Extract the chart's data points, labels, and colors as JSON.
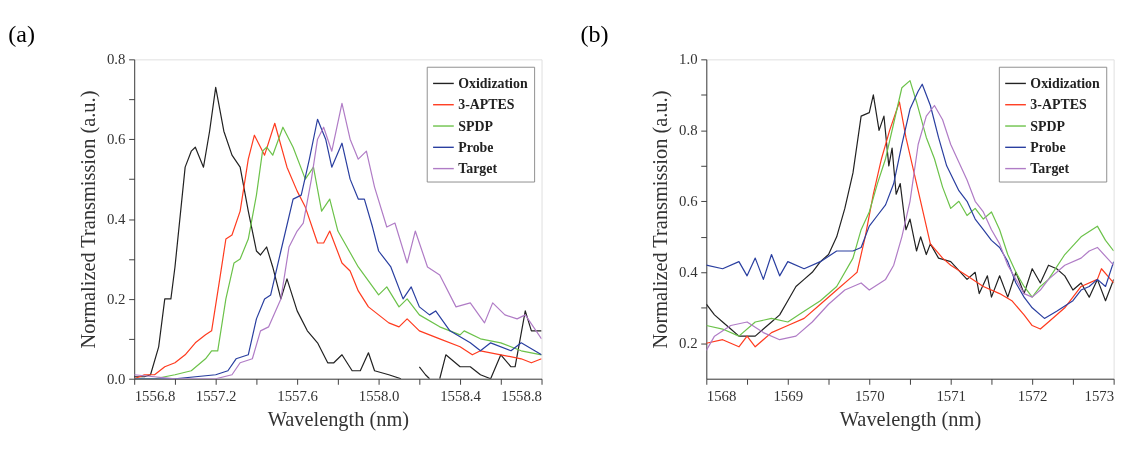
{
  "chart_data": [
    {
      "type": "line",
      "title": "(a)",
      "xlabel": "Wavelength (nm)",
      "ylabel": "Normalized Transmission (a.u.)",
      "xlim": [
        1556.8,
        1558.8
      ],
      "ylim": [
        0,
        0.8
      ],
      "xticks": [
        1556.8,
        {
          "value": 1557.0,
          "label": null
        },
        1557.2,
        {
          "value": 1557.4,
          "label": null
        },
        1557.6,
        {
          "value": 1557.8,
          "label": null
        },
        {
          "value": 1558.0,
          "label": "1558.0"
        },
        {
          "value": 1558.2,
          "label": null
        },
        1558.4,
        {
          "value": 1558.6,
          "label": null
        },
        1558.8
      ],
      "yticks": [
        {
          "value": 0,
          "label": "0.0"
        },
        {
          "value": 0.1,
          "label": null
        },
        0.2,
        {
          "value": 0.3,
          "label": null
        },
        0.4,
        {
          "value": 0.5,
          "label": null
        },
        0.6,
        {
          "value": 0.7,
          "label": null
        },
        0.8
      ],
      "grid": false,
      "legend": "top right",
      "series": [
        {
          "name": "Oxidization",
          "color": "#222222",
          "x": [
            1556.8,
            1556.85,
            1556.88,
            1556.92,
            1556.95,
            1556.98,
            1557.0,
            1557.05,
            1557.08,
            1557.1,
            1557.14,
            1557.17,
            1557.2,
            1557.24,
            1557.28,
            1557.32,
            1557.36,
            1557.4,
            1557.42,
            1557.45,
            1557.48,
            1557.52,
            1557.55,
            1557.6,
            1557.65,
            1557.7,
            1557.75,
            1557.78,
            1557.82,
            1557.87,
            1557.91,
            1557.95,
            1557.98,
            1558.05,
            1558.11,
            1558.12,
            1558.15,
            1558.2,
            1558.23,
            1558.25,
            1558.28,
            1558.3,
            1558.33,
            1558.4,
            1558.45,
            1558.5,
            1558.55,
            1558.6,
            1558.65,
            1558.67,
            1558.72,
            1558.75,
            1558.8
          ],
          "values": [
            0.005,
            0.005,
            0.01,
            0.08,
            0.2,
            0.2,
            0.28,
            0.53,
            0.57,
            0.58,
            0.53,
            0.62,
            0.73,
            0.62,
            0.56,
            0.53,
            0.42,
            0.32,
            0.31,
            0.33,
            0.28,
            0.2,
            0.25,
            0.17,
            0.12,
            0.09,
            0.04,
            0.04,
            0.06,
            0.02,
            0.02,
            0.065,
            0.02,
            0.01,
            0.0,
            null,
            null,
            0.03,
            0.01,
            0.0,
            null,
            0.0,
            0.06,
            0.03,
            0.03,
            0.01,
            0.0,
            0.06,
            0.03,
            0.03,
            0.17,
            0.12,
            0.12
          ]
        },
        {
          "name": "3-APTES",
          "color": "#ff3b1f",
          "x": [
            1556.8,
            1556.85,
            1556.9,
            1556.95,
            1557.0,
            1557.05,
            1557.1,
            1557.15,
            1557.18,
            1557.22,
            1557.25,
            1557.28,
            1557.32,
            1557.36,
            1557.39,
            1557.44,
            1557.49,
            1557.55,
            1557.6,
            1557.64,
            1557.7,
            1557.73,
            1557.76,
            1557.82,
            1557.86,
            1557.9,
            1557.95,
            1558.0,
            1558.05,
            1558.1,
            1558.14,
            1558.2,
            1558.3,
            1558.4,
            1558.46,
            1558.5,
            1558.6,
            1558.7,
            1558.75,
            1558.8
          ],
          "values": [
            0.0,
            0.01,
            0.01,
            0.03,
            0.04,
            0.06,
            0.09,
            0.11,
            0.12,
            0.25,
            0.35,
            0.36,
            0.42,
            0.55,
            0.61,
            0.56,
            0.64,
            0.53,
            0.47,
            0.43,
            0.34,
            0.34,
            0.37,
            0.29,
            0.27,
            0.22,
            0.18,
            0.16,
            0.14,
            0.13,
            0.15,
            0.12,
            0.1,
            0.08,
            0.06,
            0.07,
            0.06,
            0.05,
            0.04,
            0.05
          ]
        },
        {
          "name": "SPDP",
          "color": "#6cc24a",
          "x": [
            1556.8,
            1556.9,
            1557.0,
            1557.08,
            1557.15,
            1557.18,
            1557.21,
            1557.25,
            1557.29,
            1557.32,
            1557.36,
            1557.4,
            1557.43,
            1557.45,
            1557.48,
            1557.53,
            1557.58,
            1557.64,
            1557.68,
            1557.72,
            1557.76,
            1557.8,
            1557.9,
            1558.0,
            1558.04,
            1558.1,
            1558.14,
            1558.2,
            1558.3,
            1558.4,
            1558.42,
            1558.5,
            1558.6,
            1558.7,
            1558.8
          ],
          "values": [
            0.0,
            0.0,
            0.01,
            0.02,
            0.05,
            0.07,
            0.07,
            0.2,
            0.29,
            0.3,
            0.35,
            0.46,
            0.57,
            0.58,
            0.56,
            0.63,
            0.58,
            0.5,
            0.53,
            0.42,
            0.45,
            0.37,
            0.28,
            0.21,
            0.23,
            0.18,
            0.2,
            0.16,
            0.13,
            0.11,
            0.12,
            0.1,
            0.09,
            0.07,
            0.06
          ]
        },
        {
          "name": "Probe",
          "color": "#2a3fa0",
          "x": [
            1556.8,
            1557.0,
            1557.2,
            1557.26,
            1557.3,
            1557.36,
            1557.4,
            1557.44,
            1557.47,
            1557.52,
            1557.58,
            1557.62,
            1557.66,
            1557.7,
            1557.74,
            1557.77,
            1557.82,
            1557.86,
            1557.9,
            1557.93,
            1557.97,
            1558.0,
            1558.06,
            1558.12,
            1558.16,
            1558.2,
            1558.25,
            1558.28,
            1558.35,
            1558.45,
            1558.5,
            1558.55,
            1558.65,
            1558.7,
            1558.8
          ],
          "values": [
            0.0,
            0.0,
            0.01,
            0.02,
            0.05,
            0.06,
            0.15,
            0.2,
            0.21,
            0.32,
            0.45,
            0.46,
            0.55,
            0.65,
            0.6,
            0.53,
            0.59,
            0.5,
            0.45,
            0.45,
            0.38,
            0.32,
            0.28,
            0.2,
            0.23,
            0.18,
            0.16,
            0.17,
            0.12,
            0.09,
            0.07,
            0.09,
            0.07,
            0.09,
            0.06
          ]
        },
        {
          "name": "Target",
          "color": "#b07cc6",
          "x": [
            1556.8,
            1557.0,
            1557.2,
            1557.28,
            1557.32,
            1557.38,
            1557.42,
            1557.46,
            1557.52,
            1557.56,
            1557.6,
            1557.63,
            1557.67,
            1557.7,
            1557.73,
            1557.77,
            1557.82,
            1557.86,
            1557.9,
            1557.94,
            1557.98,
            1558.04,
            1558.08,
            1558.14,
            1558.18,
            1558.24,
            1558.3,
            1558.38,
            1558.45,
            1558.52,
            1558.56,
            1558.62,
            1558.68,
            1558.72,
            1558.8
          ],
          "values": [
            0.01,
            0.0,
            0.0,
            0.01,
            0.04,
            0.05,
            0.12,
            0.13,
            0.2,
            0.33,
            0.37,
            0.39,
            0.5,
            0.6,
            0.63,
            0.57,
            0.69,
            0.6,
            0.55,
            0.57,
            0.48,
            0.38,
            0.39,
            0.29,
            0.37,
            0.28,
            0.26,
            0.18,
            0.19,
            0.14,
            0.19,
            0.16,
            0.15,
            0.16,
            0.1
          ]
        }
      ]
    },
    {
      "type": "line",
      "title": "(b)",
      "xlabel": "Wavelength (nm)",
      "ylabel": "Normalized Transmission (a.u.)",
      "xlim": [
        1568,
        1573
      ],
      "ylim": [
        0.1,
        1.0
      ],
      "xticks": [
        1568,
        {
          "value": 1568.5,
          "label": null
        },
        1569,
        {
          "value": 1569.5,
          "label": null
        },
        1570,
        {
          "value": 1570.5,
          "label": null
        },
        1571,
        {
          "value": 1571.5,
          "label": null
        },
        1572,
        {
          "value": 1572.5,
          "label": null
        },
        1573
      ],
      "yticks": [
        0.2,
        {
          "value": 0.3,
          "label": null
        },
        0.4,
        {
          "value": 0.5,
          "label": null
        },
        0.6,
        {
          "value": 0.7,
          "label": null
        },
        0.8,
        {
          "value": 0.9,
          "label": null
        },
        {
          "value": 1.0,
          "label": "1.0"
        }
      ],
      "grid": false,
      "legend": "top right",
      "series": [
        {
          "name": "Oxidization",
          "color": "#222222",
          "x": [
            1568,
            1568.1,
            1568.2,
            1568.3,
            1568.4,
            1568.5,
            1568.6,
            1568.7,
            1568.8,
            1568.9,
            1569.0,
            1569.1,
            1569.2,
            1569.3,
            1569.4,
            1569.5,
            1569.6,
            1569.7,
            1569.8,
            1569.9,
            1570.0,
            1570.05,
            1570.12,
            1570.18,
            1570.24,
            1570.28,
            1570.33,
            1570.38,
            1570.45,
            1570.5,
            1570.58,
            1570.63,
            1570.7,
            1570.75,
            1570.85,
            1571.0,
            1571.2,
            1571.3,
            1571.35,
            1571.45,
            1571.5,
            1571.6,
            1571.7,
            1571.8,
            1571.9,
            1572.0,
            1572.1,
            1572.2,
            1572.3,
            1572.4,
            1572.5,
            1572.6,
            1572.7,
            1572.8,
            1572.9,
            1573
          ],
          "values": [
            0.31,
            0.28,
            0.26,
            0.24,
            0.22,
            0.22,
            0.22,
            0.24,
            0.26,
            0.28,
            0.32,
            0.36,
            0.38,
            0.4,
            0.43,
            0.45,
            0.5,
            0.58,
            0.68,
            0.84,
            0.85,
            0.9,
            0.8,
            0.84,
            0.7,
            0.75,
            0.62,
            0.65,
            0.52,
            0.55,
            0.46,
            0.5,
            0.45,
            0.48,
            0.44,
            0.43,
            0.38,
            0.4,
            0.34,
            0.39,
            0.33,
            0.39,
            0.33,
            0.4,
            0.34,
            0.41,
            0.37,
            0.42,
            0.41,
            0.39,
            0.35,
            0.37,
            0.33,
            0.38,
            0.32,
            0.38
          ]
        },
        {
          "name": "3-APTES",
          "color": "#ff3b1f",
          "x": [
            1568,
            1568.2,
            1568.4,
            1568.5,
            1568.6,
            1568.8,
            1569.0,
            1569.2,
            1569.4,
            1569.6,
            1569.8,
            1569.85,
            1569.95,
            1570.05,
            1570.15,
            1570.25,
            1570.37,
            1570.45,
            1570.55,
            1570.65,
            1570.75,
            1570.9,
            1571.0,
            1571.2,
            1571.4,
            1571.6,
            1571.75,
            1571.9,
            1572.0,
            1572.1,
            1572.2,
            1572.4,
            1572.6,
            1572.8,
            1572.85,
            1573
          ],
          "values": [
            0.2,
            0.21,
            0.19,
            0.22,
            0.19,
            0.23,
            0.25,
            0.27,
            0.31,
            0.35,
            0.39,
            0.4,
            0.5,
            0.62,
            0.72,
            0.8,
            0.88,
            0.78,
            0.68,
            0.58,
            0.48,
            0.44,
            0.42,
            0.39,
            0.36,
            0.34,
            0.32,
            0.28,
            0.25,
            0.24,
            0.26,
            0.3,
            0.36,
            0.38,
            0.41,
            0.37
          ]
        },
        {
          "name": "SPDP",
          "color": "#6cc24a",
          "x": [
            1568,
            1568.2,
            1568.4,
            1568.6,
            1568.8,
            1569.0,
            1569.2,
            1569.4,
            1569.6,
            1569.8,
            1569.9,
            1570.0,
            1570.1,
            1570.2,
            1570.3,
            1570.4,
            1570.5,
            1570.58,
            1570.7,
            1570.8,
            1570.9,
            1571.0,
            1571.1,
            1571.2,
            1571.3,
            1571.4,
            1571.5,
            1571.6,
            1571.7,
            1571.8,
            1571.9,
            1572.0,
            1572.1,
            1572.2,
            1572.4,
            1572.6,
            1572.8,
            1572.9,
            1573
          ],
          "values": [
            0.25,
            0.24,
            0.22,
            0.26,
            0.27,
            0.26,
            0.29,
            0.32,
            0.36,
            0.44,
            0.52,
            0.57,
            0.65,
            0.72,
            0.82,
            0.92,
            0.94,
            0.88,
            0.78,
            0.72,
            0.64,
            0.58,
            0.6,
            0.56,
            0.58,
            0.55,
            0.57,
            0.52,
            0.45,
            0.4,
            0.36,
            0.33,
            0.36,
            0.38,
            0.45,
            0.5,
            0.53,
            0.49,
            0.46
          ]
        },
        {
          "name": "Probe",
          "color": "#2a3fa0",
          "x": [
            1568,
            1568.2,
            1568.4,
            1568.5,
            1568.6,
            1568.7,
            1568.8,
            1568.9,
            1569.0,
            1569.2,
            1569.4,
            1569.6,
            1569.8,
            1569.9,
            1570.0,
            1570.1,
            1570.2,
            1570.3,
            1570.4,
            1570.5,
            1570.6,
            1570.65,
            1570.75,
            1570.85,
            1570.95,
            1571.1,
            1571.2,
            1571.3,
            1571.4,
            1571.5,
            1571.6,
            1571.7,
            1571.8,
            1571.9,
            1572.0,
            1572.15,
            1572.3,
            1572.5,
            1572.6,
            1572.7,
            1572.8,
            1572.9,
            1573
          ],
          "values": [
            0.42,
            0.41,
            0.43,
            0.39,
            0.44,
            0.38,
            0.45,
            0.39,
            0.43,
            0.41,
            0.43,
            0.46,
            0.46,
            0.47,
            0.53,
            0.56,
            0.59,
            0.65,
            0.76,
            0.86,
            0.91,
            0.93,
            0.87,
            0.78,
            0.7,
            0.63,
            0.6,
            0.55,
            0.52,
            0.49,
            0.47,
            0.43,
            0.37,
            0.33,
            0.3,
            0.27,
            0.29,
            0.32,
            0.35,
            0.36,
            0.38,
            0.36,
            0.43
          ]
        },
        {
          "name": "Target",
          "color": "#b07cc6",
          "x": [
            1568,
            1568.1,
            1568.3,
            1568.5,
            1568.7,
            1568.9,
            1569.1,
            1569.3,
            1569.5,
            1569.7,
            1569.9,
            1570.0,
            1570.2,
            1570.3,
            1570.4,
            1570.5,
            1570.6,
            1570.7,
            1570.8,
            1570.9,
            1571.0,
            1571.1,
            1571.2,
            1571.3,
            1571.4,
            1571.5,
            1571.6,
            1571.7,
            1571.8,
            1571.9,
            1572.0,
            1572.1,
            1572.2,
            1572.4,
            1572.6,
            1572.7,
            1572.8,
            1573
          ],
          "values": [
            0.18,
            0.22,
            0.25,
            0.26,
            0.23,
            0.21,
            0.22,
            0.26,
            0.31,
            0.35,
            0.37,
            0.35,
            0.38,
            0.42,
            0.5,
            0.6,
            0.76,
            0.84,
            0.87,
            0.83,
            0.76,
            0.71,
            0.66,
            0.6,
            0.57,
            0.52,
            0.48,
            0.42,
            0.38,
            0.34,
            0.33,
            0.35,
            0.38,
            0.42,
            0.44,
            0.46,
            0.47,
            0.42
          ]
        }
      ]
    }
  ]
}
